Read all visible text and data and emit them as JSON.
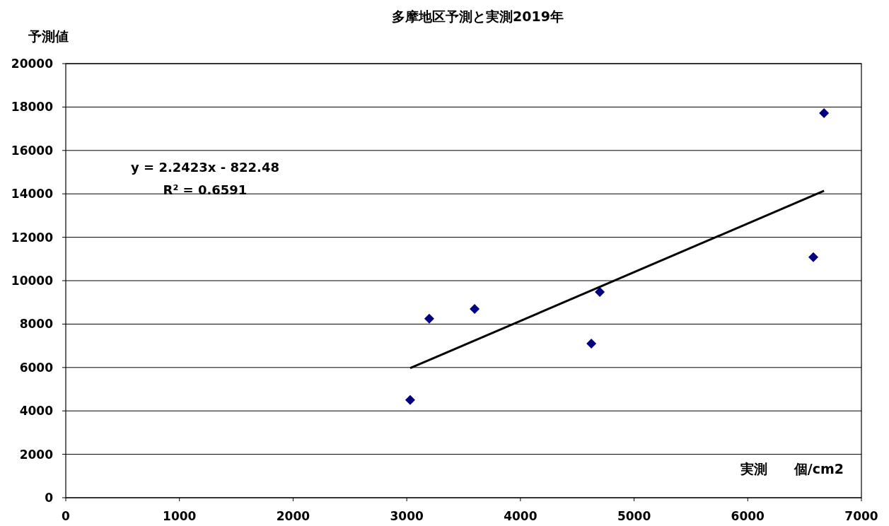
{
  "chart_data": {
    "type": "scatter",
    "title": "多摩地区予測と実測2019年",
    "xlabel": "実測　　個/cm2",
    "ylabel": "予測値",
    "annotations": [
      "y = 2.2423x - 822.48",
      "R² = 0.6591"
    ],
    "series": [
      {
        "color": "#000080",
        "marker": "diamond",
        "x": [
          3030,
          3198,
          3597,
          4624,
          4698,
          6577,
          6671
        ],
        "values": [
          4500,
          8250,
          8700,
          7100,
          9480,
          11080,
          17720
        ]
      },
      {
        "type": "line",
        "color": "#000000",
        "marker": "none",
        "x": [
          3030,
          6671
        ],
        "values": [
          5970,
          14140
        ]
      }
    ],
    "xlim": [
      0,
      7000
    ],
    "ylim": [
      0,
      20000
    ],
    "xticks": [
      0,
      1000,
      2000,
      3000,
      4000,
      5000,
      6000,
      7000
    ],
    "yticks": [
      0,
      2000,
      4000,
      6000,
      8000,
      10000,
      12000,
      14000,
      16000,
      18000,
      20000
    ],
    "grid": "y"
  }
}
